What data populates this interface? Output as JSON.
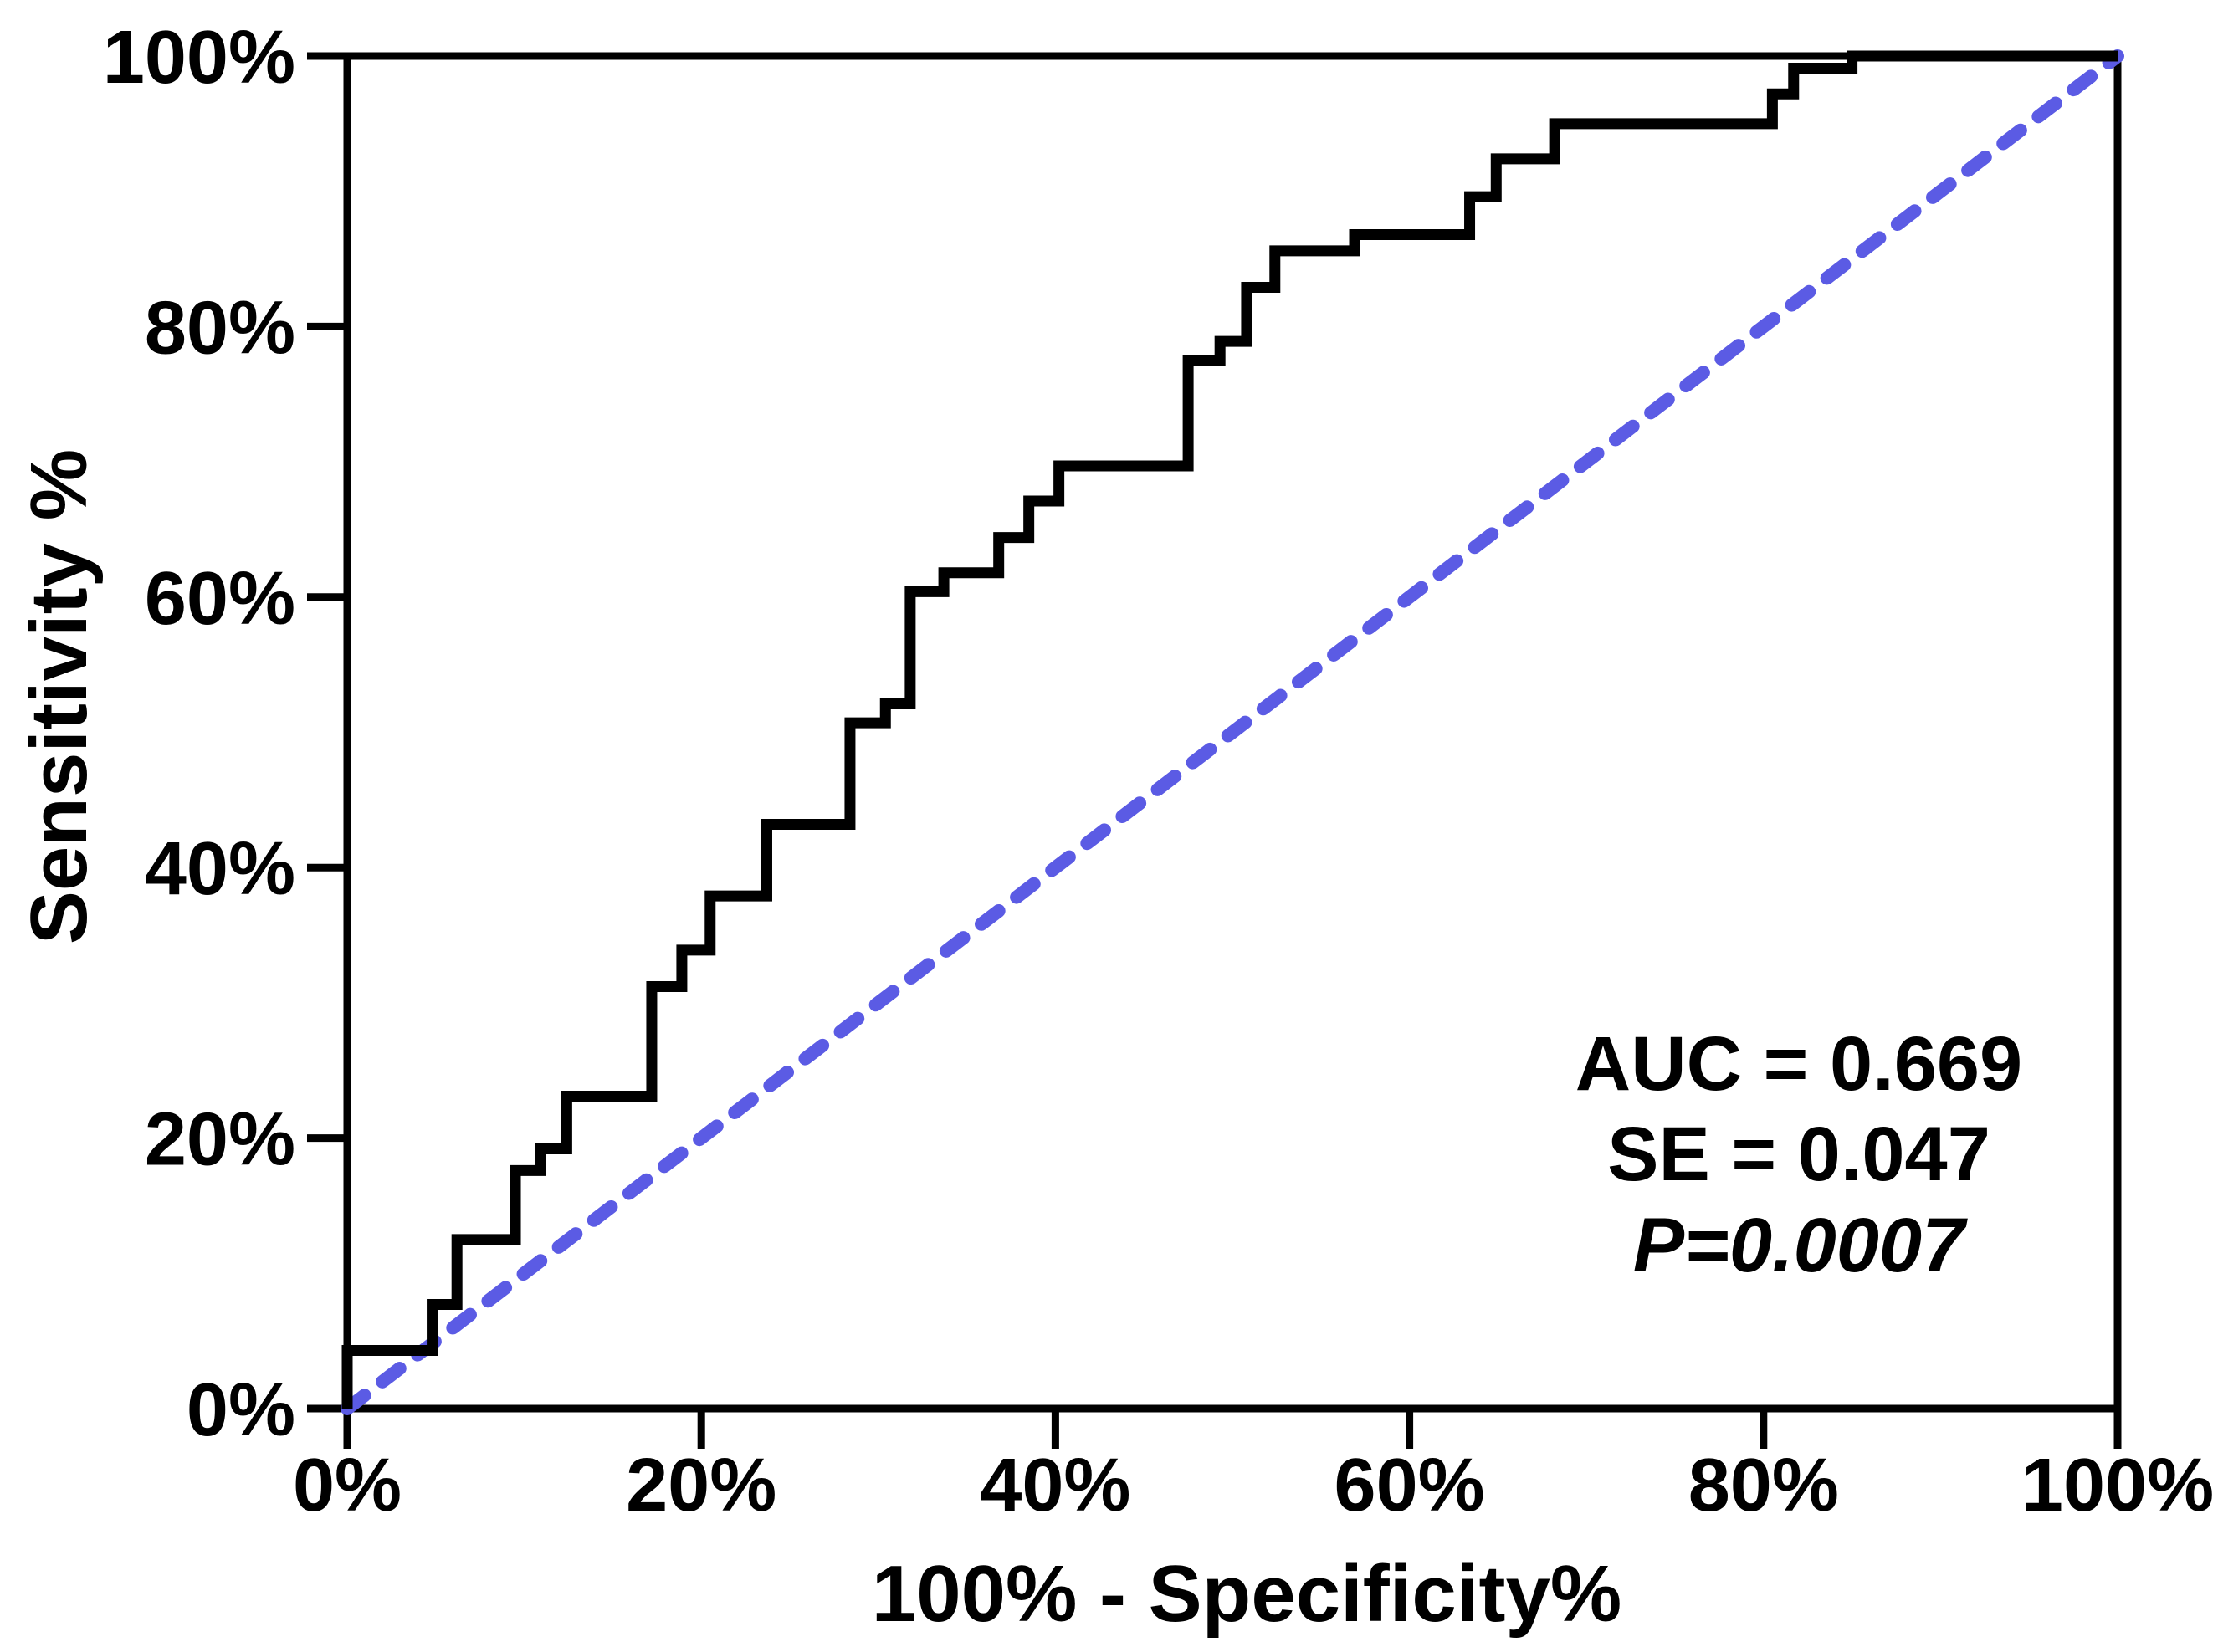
{
  "figure": {
    "background_color": "#ffffff",
    "frame_color": "#000000"
  },
  "chart_data": {
    "type": "line",
    "subtype": "roc_step_curve",
    "title": "",
    "xlabel": "100% - Specificity%",
    "ylabel": "Sensitivity %",
    "xlim": [
      0,
      100
    ],
    "ylim": [
      0,
      100
    ],
    "grid": false,
    "frame": "full-box",
    "legend_position": "none",
    "x_tick_values": [
      0,
      20,
      40,
      60,
      80,
      100
    ],
    "x_tick_labels": [
      "0%",
      "20%",
      "40%",
      "60%",
      "80%",
      "100%"
    ],
    "y_tick_values": [
      0,
      20,
      40,
      60,
      80,
      100
    ],
    "y_tick_labels": [
      "0%",
      "20%",
      "40%",
      "60%",
      "80%",
      "100%"
    ],
    "series": [
      {
        "name": "reference-diagonal",
        "color": "#5b5be4",
        "style": "dashed",
        "points": [
          [
            0,
            0
          ],
          [
            100,
            100
          ]
        ]
      },
      {
        "name": "roc-curve",
        "color": "#000000",
        "style": "step",
        "points": [
          [
            0,
            0
          ],
          [
            0,
            4.3
          ],
          [
            4.8,
            4.3
          ],
          [
            4.8,
            7.7
          ],
          [
            6.2,
            7.7
          ],
          [
            6.2,
            12.5
          ],
          [
            9.5,
            12.5
          ],
          [
            9.5,
            17.6
          ],
          [
            10.9,
            17.6
          ],
          [
            10.9,
            19.2
          ],
          [
            12.4,
            19.2
          ],
          [
            12.4,
            23.1
          ],
          [
            17.2,
            23.1
          ],
          [
            17.2,
            31.2
          ],
          [
            18.9,
            31.2
          ],
          [
            18.9,
            33.9
          ],
          [
            20.5,
            33.9
          ],
          [
            20.5,
            37.9
          ],
          [
            23.7,
            37.9
          ],
          [
            23.7,
            43.2
          ],
          [
            28.4,
            43.2
          ],
          [
            28.4,
            50.7
          ],
          [
            30.4,
            50.7
          ],
          [
            30.4,
            52.1
          ],
          [
            31.8,
            52.1
          ],
          [
            31.8,
            60.4
          ],
          [
            33.7,
            60.4
          ],
          [
            33.7,
            61.8
          ],
          [
            36.8,
            61.8
          ],
          [
            36.8,
            64.4
          ],
          [
            38.5,
            64.4
          ],
          [
            38.5,
            67.1
          ],
          [
            40.2,
            67.1
          ],
          [
            40.2,
            69.7
          ],
          [
            47.5,
            69.7
          ],
          [
            47.5,
            77.5
          ],
          [
            49.3,
            77.5
          ],
          [
            49.3,
            78.9
          ],
          [
            50.8,
            78.9
          ],
          [
            50.8,
            82.9
          ],
          [
            52.4,
            82.9
          ],
          [
            52.4,
            85.6
          ],
          [
            56.9,
            85.6
          ],
          [
            56.9,
            86.8
          ],
          [
            63.4,
            86.8
          ],
          [
            63.4,
            89.6
          ],
          [
            64.9,
            89.6
          ],
          [
            64.9,
            92.4
          ],
          [
            68.2,
            92.4
          ],
          [
            68.2,
            95.0
          ],
          [
            80.5,
            95.0
          ],
          [
            80.5,
            97.2
          ],
          [
            81.7,
            97.2
          ],
          [
            81.7,
            99.1
          ],
          [
            85.0,
            99.1
          ],
          [
            85.0,
            100
          ],
          [
            100,
            100
          ]
        ]
      }
    ],
    "annotations": [
      {
        "text": "AUC = 0.669",
        "italic": false
      },
      {
        "text": "SE = 0.047",
        "italic": false
      },
      {
        "text": "P=0.0007",
        "italic": true
      }
    ]
  }
}
